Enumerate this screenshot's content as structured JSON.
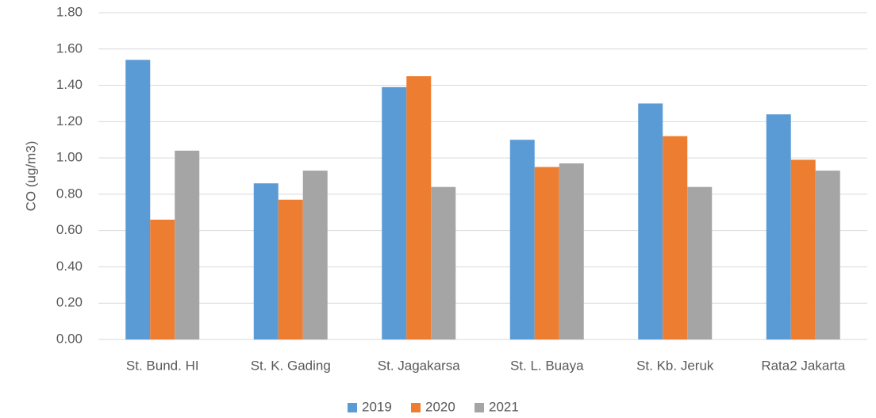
{
  "chart_data": {
    "type": "bar",
    "y_label": "CO (ug/m3)",
    "categories": [
      "St. Bund. HI",
      "St. K. Gading",
      "St. Jagakarsa",
      "St. L. Buaya",
      "St. Kb. Jeruk",
      "Rata2 Jakarta"
    ],
    "series": [
      {
        "name": "2019",
        "color": "#5b9bd5",
        "values": [
          1.54,
          0.86,
          1.39,
          1.1,
          1.3,
          1.24
        ]
      },
      {
        "name": "2020",
        "color": "#ed7d31",
        "values": [
          0.66,
          0.77,
          1.45,
          0.95,
          1.12,
          0.99
        ]
      },
      {
        "name": "2021",
        "color": "#a5a5a5",
        "values": [
          1.04,
          0.93,
          0.84,
          0.97,
          0.84,
          0.93
        ]
      }
    ],
    "ylim": [
      0,
      1.8
    ],
    "yticks": [
      {
        "value": 0,
        "label": "0.00"
      },
      {
        "value": 0.2,
        "label": "0.20"
      },
      {
        "value": 0.4,
        "label": "0.40"
      },
      {
        "value": 0.6,
        "label": "0.60"
      },
      {
        "value": 0.8,
        "label": "0.80"
      },
      {
        "value": 1,
        "label": "1.00"
      },
      {
        "value": 1.2,
        "label": "1.20"
      },
      {
        "value": 1.4,
        "label": "1.40"
      },
      {
        "value": 1.6,
        "label": "1.60"
      },
      {
        "value": 1.8,
        "label": "1.80"
      }
    ],
    "grid": true,
    "legend": "bottom"
  }
}
